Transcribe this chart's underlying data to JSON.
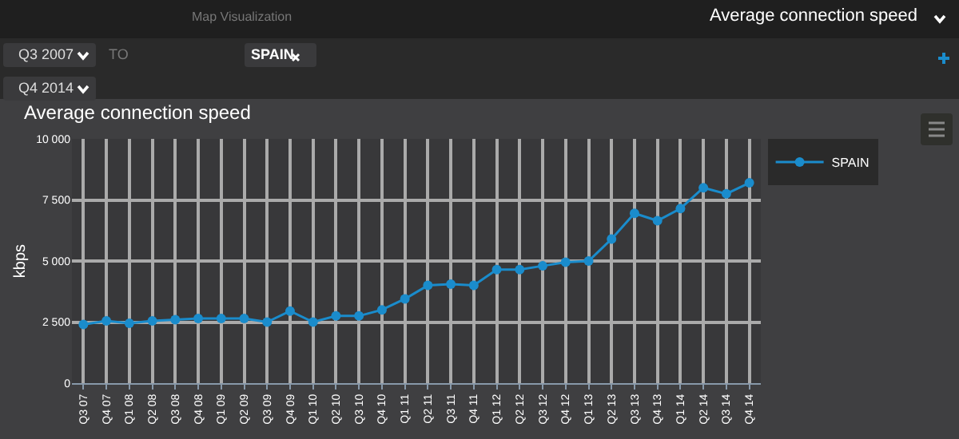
{
  "chart_data": {
    "type": "line",
    "title": "Average connection speed",
    "ylabel": "kbps",
    "annotations": [
      "Map Visualization",
      "Average connection speed",
      "Q3 2007",
      "TO",
      "SPAIN",
      "Q4 2014"
    ],
    "categories": [
      "Q3 07",
      "Q4 07",
      "Q1 08",
      "Q2 08",
      "Q3 08",
      "Q4 08",
      "Q1 09",
      "Q2 09",
      "Q3 09",
      "Q4 09",
      "Q1 10",
      "Q2 10",
      "Q3 10",
      "Q4 10",
      "Q1 11",
      "Q2 11",
      "Q3 11",
      "Q4 11",
      "Q1 12",
      "Q2 12",
      "Q3 12",
      "Q4 12",
      "Q1 13",
      "Q2 13",
      "Q3 13",
      "Q4 13",
      "Q1 14",
      "Q2 14",
      "Q3 14",
      "Q4 14"
    ],
    "series": [
      {
        "name": "SPAIN",
        "color": "#1a8ccc",
        "values": [
          2400,
          2550,
          2450,
          2550,
          2600,
          2650,
          2650,
          2650,
          2500,
          2950,
          2500,
          2750,
          2750,
          3000,
          3450,
          4000,
          4050,
          4000,
          4650,
          4650,
          4800,
          4950,
          5000,
          5900,
          6950,
          6650,
          7150,
          8000,
          7750,
          8200
        ]
      }
    ],
    "ylim": [
      0,
      10000
    ],
    "yticks": [
      0,
      {
        "value": 2500,
        "label": "2 500"
      },
      {
        "value": 5000,
        "label": "5 000"
      },
      {
        "value": 7500,
        "label": "7 500"
      },
      {
        "value": 10000,
        "label": "10 000"
      }
    ],
    "grid": true,
    "legend": "top right",
    "marker": "circle",
    "line_style": "solid"
  }
}
